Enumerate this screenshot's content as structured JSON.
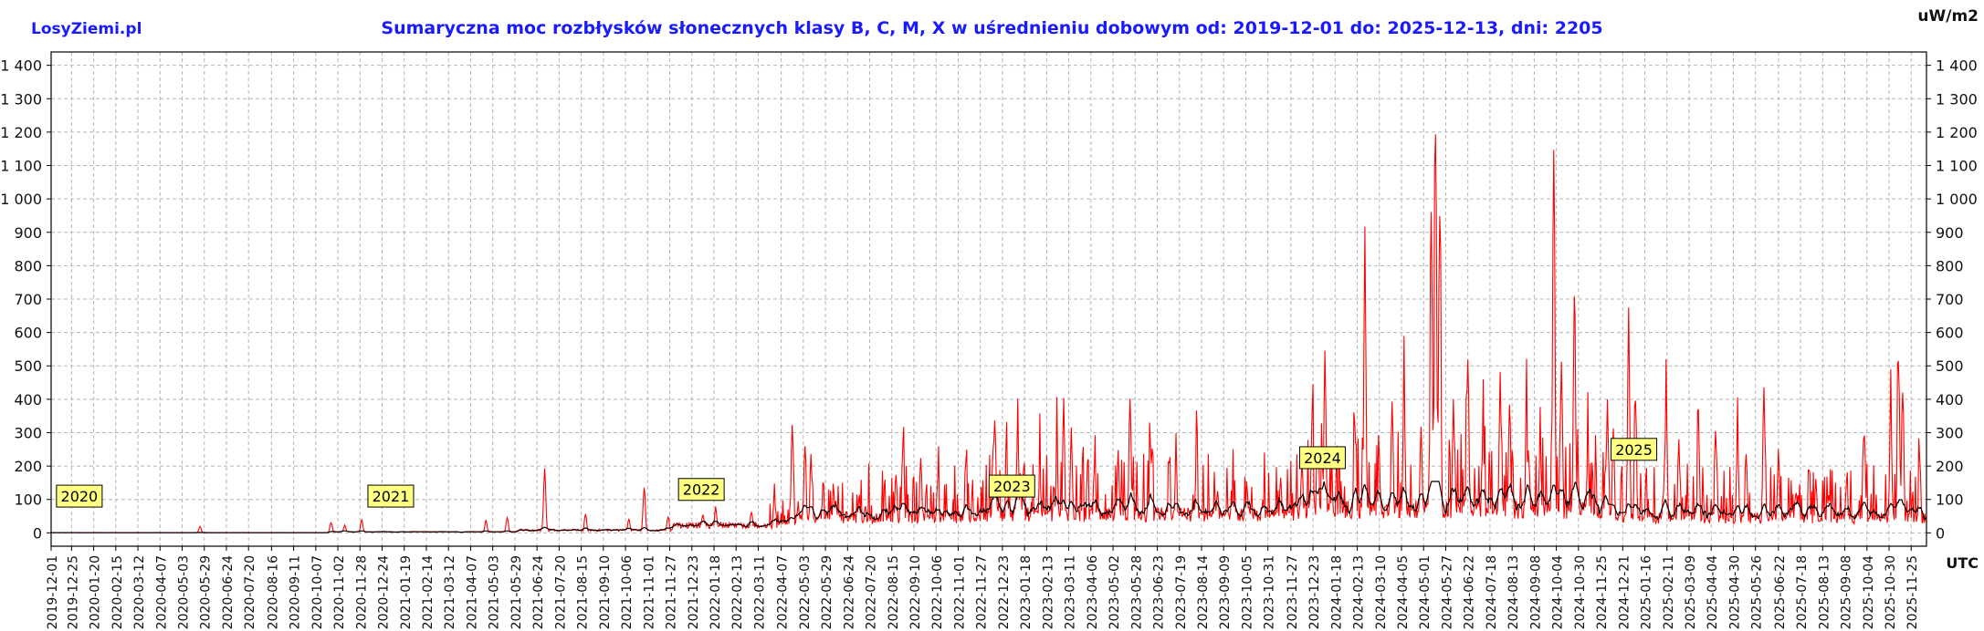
{
  "header": {
    "brand": "LosyZiemi.pl",
    "unit": "uW/m2",
    "utc_label": "UTC"
  },
  "chart_data": {
    "type": "line",
    "title": "Sumaryczna moc rozbłysków słonecznych klasy B, C, M, X w uśrednieniu dobowym od: 2019-12-01 do: 2025-12-13, dni: 2205",
    "xlabel": "UTC",
    "ylabel": "uW/m2",
    "x_range": [
      "2019-12-01",
      "2025-12-13"
    ],
    "ylim": [
      -40,
      1440
    ],
    "y_ticks": [
      0,
      100,
      200,
      300,
      400,
      500,
      600,
      700,
      800,
      900,
      1000,
      1100,
      1200,
      1300,
      1400
    ],
    "y_tick_labels": [
      "0",
      "100",
      "200",
      "300",
      "400",
      "500",
      "600",
      "700",
      "800",
      "900",
      "1 000",
      "1 100",
      "1 200",
      "1 300",
      "1 400"
    ],
    "x_tick_labels": [
      "2019-12-01",
      "2019-12-25",
      "2020-01-20",
      "2020-02-15",
      "2020-03-12",
      "2020-04-07",
      "2020-05-03",
      "2020-05-29",
      "2020-06-24",
      "2020-07-20",
      "2020-08-16",
      "2020-09-11",
      "2020-10-07",
      "2020-11-02",
      "2020-11-28",
      "2020-12-24",
      "2021-01-19",
      "2021-02-14",
      "2021-03-12",
      "2021-04-07",
      "2021-05-03",
      "2021-05-29",
      "2021-06-24",
      "2021-07-20",
      "2021-08-15",
      "2021-09-10",
      "2021-10-06",
      "2021-11-01",
      "2021-11-27",
      "2021-12-23",
      "2022-01-18",
      "2022-02-13",
      "2022-03-11",
      "2022-04-07",
      "2022-05-03",
      "2022-05-29",
      "2022-06-24",
      "2022-07-20",
      "2022-08-15",
      "2022-09-10",
      "2022-10-06",
      "2022-11-01",
      "2022-11-27",
      "2022-12-23",
      "2023-01-18",
      "2023-02-13",
      "2023-03-11",
      "2023-04-06",
      "2023-05-02",
      "2023-05-28",
      "2023-06-23",
      "2023-07-19",
      "2023-08-14",
      "2023-09-09",
      "2023-10-05",
      "2023-10-31",
      "2023-11-27",
      "2023-12-23",
      "2024-01-18",
      "2024-02-13",
      "2024-03-10",
      "2024-04-05",
      "2024-05-01",
      "2024-05-27",
      "2024-06-22",
      "2024-07-18",
      "2024-08-13",
      "2024-09-08",
      "2024-10-04",
      "2024-10-30",
      "2024-11-25",
      "2024-12-21",
      "2025-01-16",
      "2025-02-11",
      "2025-03-09",
      "2025-04-04",
      "2025-04-30",
      "2025-05-26",
      "2025-06-22",
      "2025-07-18",
      "2025-08-13",
      "2025-09-08",
      "2025-10-04",
      "2025-10-30",
      "2025-11-25"
    ],
    "year_markers": [
      {
        "label": "2020",
        "date": "2020-01-01",
        "y": 110
      },
      {
        "label": "2021",
        "date": "2021-01-01",
        "y": 110
      },
      {
        "label": "2022",
        "date": "2022-01-01",
        "y": 130
      },
      {
        "label": "2023",
        "date": "2023-01-01",
        "y": 140
      },
      {
        "label": "2024",
        "date": "2024-01-01",
        "y": 225
      },
      {
        "label": "2025",
        "date": "2025-01-01",
        "y": 250
      }
    ],
    "grid": true,
    "series": [
      {
        "color": "#ff0000",
        "peaks": [
          [
            "2020-05-24",
            22
          ],
          [
            "2020-10-25",
            35
          ],
          [
            "2020-11-10",
            25
          ],
          [
            "2020-11-30",
            42
          ],
          [
            "2021-04-25",
            42
          ],
          [
            "2021-05-20",
            50
          ],
          [
            "2021-07-03",
            205
          ],
          [
            "2021-08-20",
            60
          ],
          [
            "2021-10-10",
            45
          ],
          [
            "2021-10-28",
            150
          ],
          [
            "2021-11-25",
            55
          ],
          [
            "2022-01-05",
            60
          ],
          [
            "2022-01-20",
            80
          ],
          [
            "2022-03-03",
            70
          ],
          [
            "2022-03-30",
            125
          ],
          [
            "2022-04-20",
            375
          ],
          [
            "2022-05-05",
            300
          ],
          [
            "2022-05-12",
            240
          ],
          [
            "2022-06-10",
            110
          ],
          [
            "2022-07-15",
            90
          ],
          [
            "2022-08-20",
            200
          ],
          [
            "2022-08-28",
            275
          ],
          [
            "2022-09-18",
            230
          ],
          [
            "2022-10-08",
            180
          ],
          [
            "2022-11-10",
            240
          ],
          [
            "2022-12-14",
            395
          ],
          [
            "2022-12-28",
            180
          ],
          [
            "2023-01-10",
            320
          ],
          [
            "2023-02-05",
            200
          ],
          [
            "2023-02-25",
            250
          ],
          [
            "2023-03-05",
            225
          ],
          [
            "2023-03-14",
            320
          ],
          [
            "2023-04-10",
            200
          ],
          [
            "2023-05-08",
            260
          ],
          [
            "2023-05-22",
            450
          ],
          [
            "2023-06-15",
            290
          ],
          [
            "2023-07-15",
            220
          ],
          [
            "2023-08-08",
            260
          ],
          [
            "2023-09-02",
            140
          ],
          [
            "2023-09-20",
            120
          ],
          [
            "2023-10-25",
            110
          ],
          [
            "2023-11-15",
            170
          ],
          [
            "2023-12-10",
            230
          ],
          [
            "2023-12-22",
            390
          ],
          [
            "2024-01-03",
            220
          ],
          [
            "2024-01-06",
            580
          ],
          [
            "2024-02-10",
            360
          ],
          [
            "2024-02-22",
            890
          ],
          [
            "2024-03-25",
            400
          ],
          [
            "2024-04-08",
            470
          ],
          [
            "2024-04-28",
            360
          ],
          [
            "2024-05-10",
            970
          ],
          [
            "2024-05-15",
            1290
          ],
          [
            "2024-05-20",
            1050
          ],
          [
            "2024-06-05",
            400
          ],
          [
            "2024-06-22",
            600
          ],
          [
            "2024-07-10",
            310
          ],
          [
            "2024-07-30",
            510
          ],
          [
            "2024-08-10",
            440
          ],
          [
            "2024-08-30",
            300
          ],
          [
            "2024-09-15",
            290
          ],
          [
            "2024-10-01",
            1080
          ],
          [
            "2024-10-10",
            540
          ],
          [
            "2024-10-25",
            580
          ],
          [
            "2024-11-10",
            280
          ],
          [
            "2024-12-03",
            400
          ],
          [
            "2024-12-10",
            320
          ],
          [
            "2024-12-28",
            640
          ],
          [
            "2025-01-05",
            430
          ],
          [
            "2025-02-10",
            430
          ],
          [
            "2025-02-25",
            300
          ],
          [
            "2025-03-20",
            330
          ],
          [
            "2025-04-10",
            280
          ],
          [
            "2025-05-05",
            310
          ],
          [
            "2025-05-15",
            270
          ],
          [
            "2025-06-05",
            475
          ],
          [
            "2025-06-22",
            260
          ],
          [
            "2025-07-15",
            130
          ],
          [
            "2025-08-05",
            180
          ],
          [
            "2025-08-20",
            130
          ],
          [
            "2025-09-10",
            170
          ],
          [
            "2025-10-01",
            200
          ],
          [
            "2025-11-01",
            410
          ],
          [
            "2025-11-10",
            590
          ],
          [
            "2025-11-15",
            480
          ],
          [
            "2025-12-05",
            260
          ]
        ]
      }
    ]
  }
}
